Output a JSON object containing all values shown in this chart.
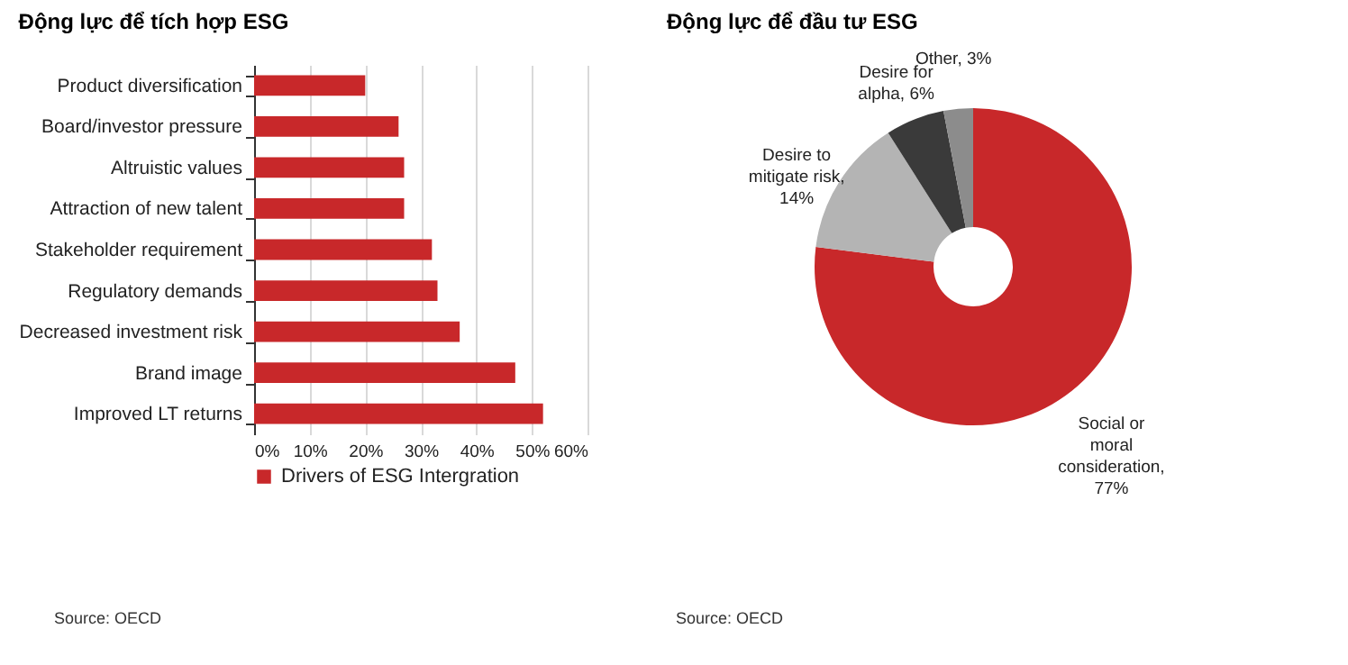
{
  "chart_data": [
    {
      "type": "bar",
      "orientation": "horizontal",
      "title": "Động lực để tích hợp ESG",
      "categories": [
        "Product diversification",
        "Board/investor pressure",
        "Altruistic values",
        "Attraction of new talent",
        "Stakeholder requirement",
        "Regulatory demands",
        "Decreased investment risk",
        "Brand image",
        "Improved LT returns"
      ],
      "series": [
        {
          "name": "Drivers of ESG Intergration",
          "color": "#c8282a",
          "values": [
            20,
            26,
            27,
            27,
            32,
            33,
            37,
            47,
            52
          ]
        }
      ],
      "xlim": [
        0,
        60
      ],
      "xticks": [
        {
          "value": 0,
          "label": "0%"
        },
        {
          "value": 10,
          "label": "10%"
        },
        {
          "value": 20,
          "label": "20%"
        },
        {
          "value": 30,
          "label": "30%"
        },
        {
          "value": 40,
          "label": "40%"
        },
        {
          "value": 50,
          "label": "50%"
        },
        {
          "value": 60,
          "label": "60%"
        }
      ],
      "grid": "x",
      "legend": "bottom",
      "annotations": [
        "Source: OECD"
      ]
    },
    {
      "type": "donut",
      "title": "Động lực để đầu tư ESG",
      "categories": [
        "Social or moral consideration, 77%",
        "Desire to mitigate risk, 14%",
        "Desire for alpha, 6%",
        "Other, 3%"
      ],
      "values": [
        77,
        14,
        6,
        3
      ],
      "colors": [
        "#c8282a",
        "#b4b4b4",
        "#3a3a3a",
        "#8c8c8c"
      ],
      "legend": false,
      "annotations": [
        "Source: OECD"
      ]
    }
  ]
}
